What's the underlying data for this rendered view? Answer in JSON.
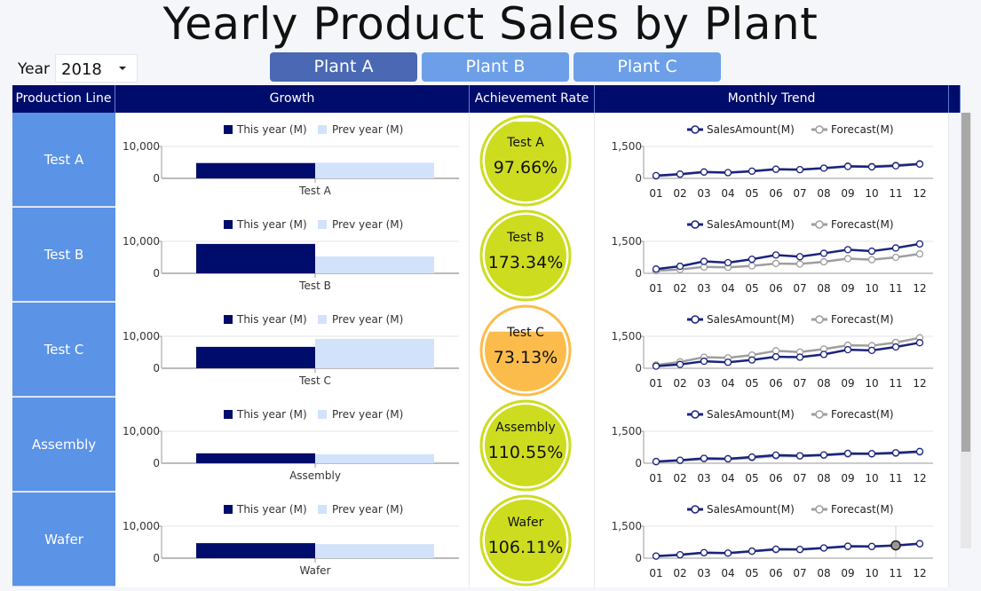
{
  "title": "Yearly Product Sales by Plant",
  "year": {
    "label": "Year",
    "value": "2018"
  },
  "plants": [
    {
      "label": "Plant A",
      "active": true
    },
    {
      "label": "Plant B",
      "active": false
    },
    {
      "label": "Plant C",
      "active": false
    }
  ],
  "headers": [
    "Production Line",
    "Growth",
    "Achievement Rate",
    "Monthly Trend"
  ],
  "colors": {
    "header": "#000c6b",
    "this_year": "#000c6b",
    "prev_year": "#d2e2fb",
    "sales": "#1a237e",
    "forecast": "#9e9e9e",
    "good": "#cddc1f",
    "warn": "#fbbc4c"
  },
  "growth_legend": [
    "This year (M)",
    "Prev year (M)"
  ],
  "growth_ticks": [
    "10,000",
    "0"
  ],
  "trend_legend": [
    "SalesAmount(M)",
    "Forecast(M)"
  ],
  "trend_ticks": [
    "1,500",
    "0"
  ],
  "months": [
    "01",
    "02",
    "03",
    "04",
    "05",
    "06",
    "07",
    "08",
    "09",
    "10",
    "11",
    "12"
  ],
  "chart_data": [
    {
      "type": "bar",
      "line": "Test A",
      "ylim": [
        0,
        10000
      ],
      "this_year": 4800,
      "prev_year": 4900,
      "rate": "97.66%",
      "rate_value": 97.66,
      "trend": {
        "ylim": [
          0,
          1500
        ],
        "sales": [
          130,
          200,
          300,
          270,
          340,
          430,
          410,
          480,
          560,
          540,
          590,
          670
        ],
        "forecast": [
          100,
          180,
          290,
          260,
          330,
          420,
          410,
          480,
          580,
          560,
          620,
          690
        ]
      }
    },
    {
      "type": "bar",
      "line": "Test B",
      "ylim": [
        0,
        10000
      ],
      "this_year": 9200,
      "prev_year": 5300,
      "rate": "173.34%",
      "rate_value": 173.34,
      "trend": {
        "ylim": [
          0,
          1500
        ],
        "sales": [
          200,
          330,
          560,
          500,
          660,
          860,
          780,
          940,
          1110,
          1040,
          1190,
          1380
        ],
        "forecast": [
          120,
          180,
          300,
          280,
          350,
          460,
          440,
          540,
          690,
          640,
          750,
          910
        ]
      }
    },
    {
      "type": "bar",
      "line": "Test C",
      "ylim": [
        0,
        10000
      ],
      "this_year": 6700,
      "prev_year": 9200,
      "rate": "73.13%",
      "rate_value": 73.13,
      "trend": {
        "ylim": [
          0,
          1500
        ],
        "sales": [
          100,
          180,
          330,
          280,
          390,
          540,
          520,
          650,
          870,
          840,
          1000,
          1200
        ],
        "forecast": [
          150,
          300,
          520,
          490,
          620,
          820,
          760,
          900,
          1080,
          1060,
          1210,
          1430
        ]
      }
    },
    {
      "type": "bar",
      "line": "Assembly",
      "ylim": [
        0,
        10000
      ],
      "this_year": 3100,
      "prev_year": 2800,
      "rate": "110.55%",
      "rate_value": 110.55,
      "trend": {
        "ylim": [
          0,
          1500
        ],
        "sales": [
          80,
          140,
          230,
          210,
          290,
          380,
          350,
          390,
          460,
          450,
          490,
          550
        ],
        "forecast": [
          60,
          120,
          200,
          190,
          250,
          340,
          330,
          370,
          430,
          430,
          460,
          520
        ]
      }
    },
    {
      "type": "bar",
      "line": "Wafer",
      "ylim": [
        0,
        10000
      ],
      "this_year": 4700,
      "prev_year": 4400,
      "rate": "106.11%",
      "rate_value": 106.11,
      "trend": {
        "ylim": [
          0,
          1500
        ],
        "sales": [
          100,
          160,
          260,
          240,
          330,
          420,
          410,
          480,
          560,
          550,
          600,
          680
        ],
        "forecast": [
          90,
          150,
          250,
          230,
          320,
          400,
          400,
          470,
          540,
          540,
          590,
          670
        ]
      }
    }
  ]
}
